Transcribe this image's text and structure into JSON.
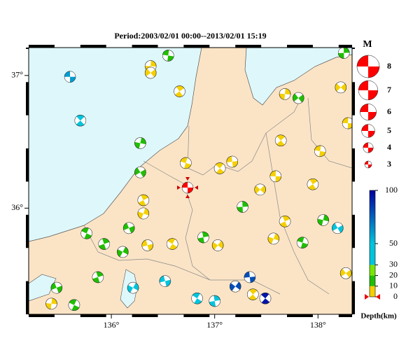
{
  "title": "Period:2003/02/01 00:00--2013/02/01 15:19",
  "map": {
    "xlim": [
      135.2,
      138.33
    ],
    "ylim": [
      35.2,
      37.21
    ],
    "xticks": [
      {
        "value": 136,
        "label": "136°"
      },
      {
        "value": 137,
        "label": "137°"
      },
      {
        "value": 138,
        "label": "138°"
      }
    ],
    "yticks": [
      {
        "value": 36,
        "label": "36°"
      },
      {
        "value": 37,
        "label": "37°"
      }
    ],
    "sea_color": "#def7fa",
    "land_color": "#fbe4c6"
  },
  "magnitude_legend": {
    "title": "M",
    "items": [
      8,
      7,
      6,
      5,
      4,
      3
    ],
    "color": "#ff0000"
  },
  "depth_scale": {
    "title": "Depth(km)",
    "dlim": [
      0,
      100
    ],
    "ticks": [
      0,
      10,
      20,
      30,
      50,
      100
    ],
    "colors": [
      "#f5d000",
      "#1fbf00",
      "#77e600",
      "#00c4dc",
      "#0000a0"
    ]
  },
  "events": [
    {
      "lon": 135.6,
      "lat": 36.99,
      "depth": 60
    },
    {
      "lon": 135.7,
      "lat": 36.66,
      "depth": 40
    },
    {
      "lon": 136.38,
      "lat": 37.07,
      "depth": 5
    },
    {
      "lon": 136.38,
      "lat": 37.02,
      "depth": 5
    },
    {
      "lon": 136.55,
      "lat": 37.15,
      "depth": 12
    },
    {
      "lon": 136.66,
      "lat": 36.88,
      "depth": 5
    },
    {
      "lon": 136.28,
      "lat": 36.49,
      "depth": 15
    },
    {
      "lon": 136.28,
      "lat": 36.27,
      "depth": 15
    },
    {
      "lon": 136.72,
      "lat": 36.34,
      "depth": 5
    },
    {
      "lon": 136.31,
      "lat": 36.06,
      "depth": 5
    },
    {
      "lon": 136.31,
      "lat": 35.96,
      "depth": 5
    },
    {
      "lon": 136.17,
      "lat": 35.85,
      "depth": 12
    },
    {
      "lon": 135.76,
      "lat": 35.81,
      "depth": 15
    },
    {
      "lon": 135.93,
      "lat": 35.73,
      "depth": 15
    },
    {
      "lon": 136.11,
      "lat": 35.67,
      "depth": 15
    },
    {
      "lon": 136.35,
      "lat": 35.72,
      "depth": 5
    },
    {
      "lon": 136.59,
      "lat": 35.73,
      "depth": 5
    },
    {
      "lon": 136.89,
      "lat": 35.78,
      "depth": 15
    },
    {
      "lon": 137.03,
      "lat": 35.72,
      "depth": 5
    },
    {
      "lon": 137.17,
      "lat": 36.35,
      "depth": 5
    },
    {
      "lon": 137.05,
      "lat": 36.3,
      "depth": 5
    },
    {
      "lon": 137.27,
      "lat": 36.01,
      "depth": 15
    },
    {
      "lon": 137.44,
      "lat": 36.14,
      "depth": 5
    },
    {
      "lon": 137.59,
      "lat": 36.24,
      "depth": 5
    },
    {
      "lon": 137.64,
      "lat": 36.51,
      "depth": 5
    },
    {
      "lon": 137.68,
      "lat": 36.86,
      "depth": 5
    },
    {
      "lon": 137.81,
      "lat": 36.83,
      "depth": 12
    },
    {
      "lon": 138.02,
      "lat": 36.43,
      "depth": 5
    },
    {
      "lon": 137.95,
      "lat": 36.18,
      "depth": 5
    },
    {
      "lon": 138.05,
      "lat": 35.91,
      "depth": 12
    },
    {
      "lon": 138.19,
      "lat": 35.85,
      "depth": 35
    },
    {
      "lon": 137.85,
      "lat": 35.74,
      "depth": 15
    },
    {
      "lon": 137.68,
      "lat": 35.9,
      "depth": 5
    },
    {
      "lon": 137.57,
      "lat": 35.77,
      "depth": 5
    },
    {
      "lon": 135.47,
      "lat": 35.4,
      "depth": 15
    },
    {
      "lon": 135.64,
      "lat": 35.27,
      "depth": 15
    },
    {
      "lon": 135.87,
      "lat": 35.48,
      "depth": 15
    },
    {
      "lon": 136.21,
      "lat": 35.4,
      "depth": 40
    },
    {
      "lon": 136.52,
      "lat": 35.45,
      "depth": 40
    },
    {
      "lon": 136.83,
      "lat": 35.32,
      "depth": 40
    },
    {
      "lon": 137.0,
      "lat": 35.3,
      "depth": 40
    },
    {
      "lon": 137.2,
      "lat": 35.41,
      "depth": 80
    },
    {
      "lon": 137.34,
      "lat": 35.48,
      "depth": 80
    },
    {
      "lon": 137.49,
      "lat": 35.32,
      "depth": 95
    },
    {
      "lon": 138.25,
      "lat": 37.17,
      "depth": 12
    },
    {
      "lon": 138.22,
      "lat": 36.91,
      "depth": 5
    },
    {
      "lon": 138.29,
      "lat": 36.64,
      "depth": 5
    },
    {
      "lon": 137.37,
      "lat": 35.35,
      "depth": 5
    },
    {
      "lon": 135.42,
      "lat": 35.28,
      "depth": 5
    },
    {
      "lon": 138.27,
      "lat": 35.51,
      "depth": 5
    }
  ]
}
